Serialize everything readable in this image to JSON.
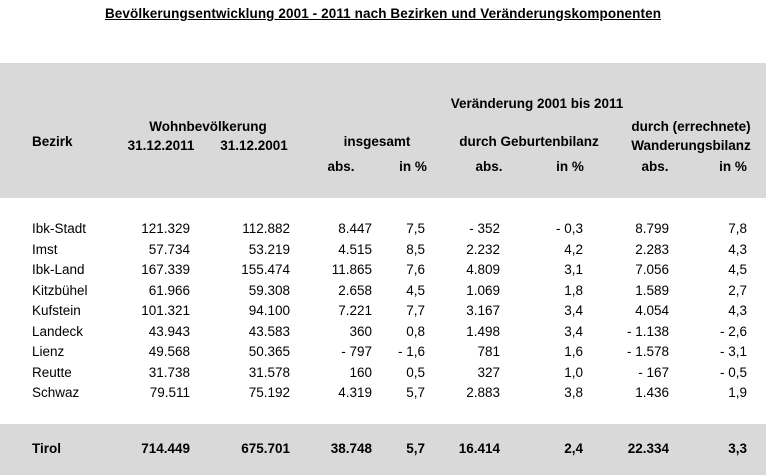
{
  "title": "Bevölkerungsentwicklung 2001 - 2011 nach Bezirken und Veränderungskomponenten",
  "headers": {
    "bezirk": "Bezirk",
    "wohnbevoelkerung": "Wohnbevölkerung",
    "date_2011": "31.12.2011",
    "date_2001": "31.12.2001",
    "veraenderung": "Veränderung 2001 bis 2011",
    "insgesamt": "insgesamt",
    "geburtenbilanz": "durch Geburtenbilanz",
    "wanderung_line1": "durch (errechnete)",
    "wanderung_line2": "Wanderungsbilanz",
    "abs": "abs.",
    "in_pct": "in %"
  },
  "rows": [
    {
      "bezirk": "Ibk-Stadt",
      "wb2011": "121.329",
      "wb2001": "112.882",
      "ges_abs": "8.447",
      "ges_pct": "7,5",
      "geb_abs": "- 352",
      "geb_pct": "- 0,3",
      "wan_abs": "8.799",
      "wan_pct": "7,8"
    },
    {
      "bezirk": "Imst",
      "wb2011": "57.734",
      "wb2001": "53.219",
      "ges_abs": "4.515",
      "ges_pct": "8,5",
      "geb_abs": "2.232",
      "geb_pct": "4,2",
      "wan_abs": "2.283",
      "wan_pct": "4,3"
    },
    {
      "bezirk": "Ibk-Land",
      "wb2011": "167.339",
      "wb2001": "155.474",
      "ges_abs": "11.865",
      "ges_pct": "7,6",
      "geb_abs": "4.809",
      "geb_pct": "3,1",
      "wan_abs": "7.056",
      "wan_pct": "4,5"
    },
    {
      "bezirk": "Kitzbühel",
      "wb2011": "61.966",
      "wb2001": "59.308",
      "ges_abs": "2.658",
      "ges_pct": "4,5",
      "geb_abs": "1.069",
      "geb_pct": "1,8",
      "wan_abs": "1.589",
      "wan_pct": "2,7"
    },
    {
      "bezirk": "Kufstein",
      "wb2011": "101.321",
      "wb2001": "94.100",
      "ges_abs": "7.221",
      "ges_pct": "7,7",
      "geb_abs": "3.167",
      "geb_pct": "3,4",
      "wan_abs": "4.054",
      "wan_pct": "4,3"
    },
    {
      "bezirk": "Landeck",
      "wb2011": "43.943",
      "wb2001": "43.583",
      "ges_abs": "360",
      "ges_pct": "0,8",
      "geb_abs": "1.498",
      "geb_pct": "3,4",
      "wan_abs": "- 1.138",
      "wan_pct": "- 2,6"
    },
    {
      "bezirk": "Lienz",
      "wb2011": "49.568",
      "wb2001": "50.365",
      "ges_abs": "- 797",
      "ges_pct": "- 1,6",
      "geb_abs": "781",
      "geb_pct": "1,6",
      "wan_abs": "- 1.578",
      "wan_pct": "- 3,1"
    },
    {
      "bezirk": "Reutte",
      "wb2011": "31.738",
      "wb2001": "31.578",
      "ges_abs": "160",
      "ges_pct": "0,5",
      "geb_abs": "327",
      "geb_pct": "1,0",
      "wan_abs": "- 167",
      "wan_pct": "- 0,5"
    },
    {
      "bezirk": "Schwaz",
      "wb2011": "79.511",
      "wb2001": "75.192",
      "ges_abs": "4.319",
      "ges_pct": "5,7",
      "geb_abs": "2.883",
      "geb_pct": "3,8",
      "wan_abs": "1.436",
      "wan_pct": "1,9"
    }
  ],
  "total": {
    "bezirk": "Tirol",
    "wb2011": "714.449",
    "wb2001": "675.701",
    "ges_abs": "38.748",
    "ges_pct": "5,7",
    "geb_abs": "16.414",
    "geb_pct": "2,4",
    "wan_abs": "22.334",
    "wan_pct": "3,3"
  },
  "colors": {
    "header_band": "#d9d9d9",
    "text": "#000000"
  }
}
